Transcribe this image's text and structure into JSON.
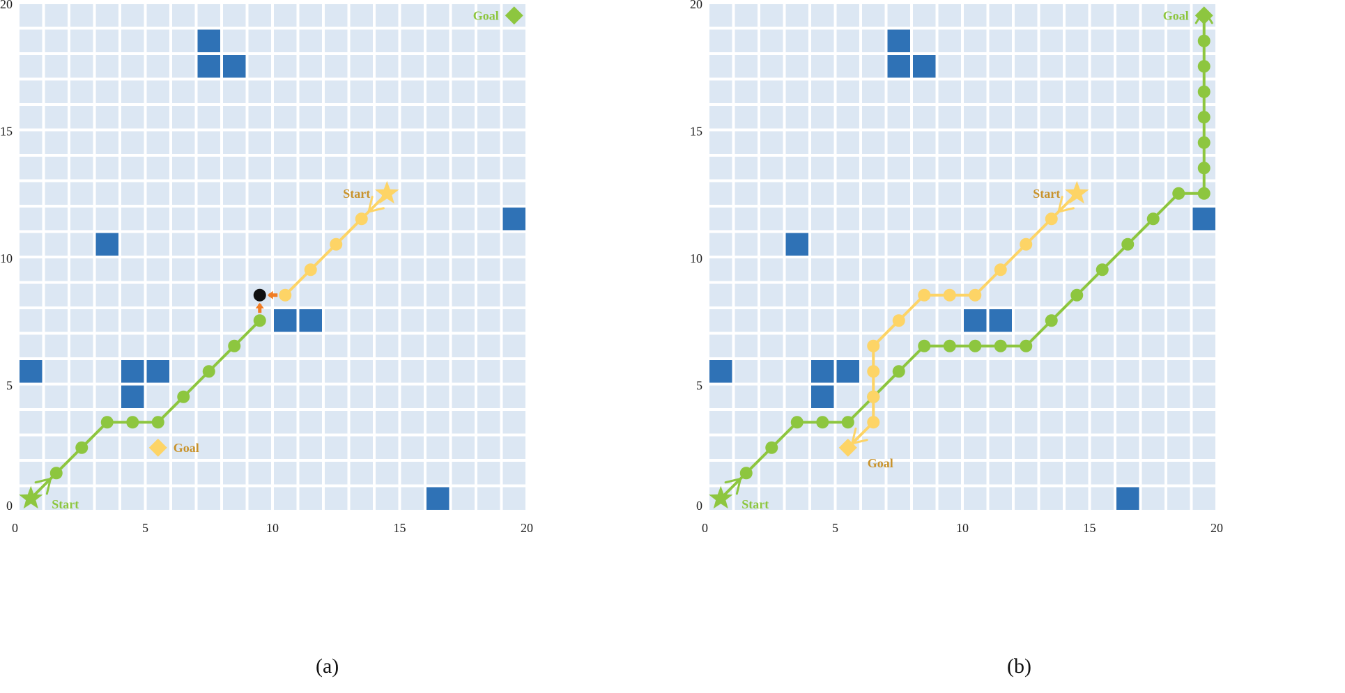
{
  "colors": {
    "cell": "#dce7f3",
    "obstacle": "#2f72b6",
    "green_agent": "#8dc63f",
    "yellow_agent": "#fdd466",
    "yellow_text": "#c8922a",
    "collision_arrow": "#f07c24",
    "collision_dot": "#111111",
    "axis_text": "#222222"
  },
  "panels": [
    {
      "id": "a",
      "caption": "(a)",
      "labels": {
        "green_start": "Start",
        "green_goal": "Goal",
        "yellow_start": "Start",
        "yellow_goal": "Goal"
      },
      "green_goal_cell": [
        19.5,
        19.5
      ],
      "yellow_goal_cell": [
        5.5,
        2.5
      ],
      "green_path": [
        [
          0.5,
          0.5
        ],
        [
          1.5,
          1.5
        ],
        [
          2.5,
          2.5
        ],
        [
          3.5,
          3.5
        ],
        [
          4.5,
          3.5
        ],
        [
          5.5,
          3.5
        ],
        [
          6.5,
          4.5
        ],
        [
          7.5,
          5.5
        ],
        [
          8.5,
          6.5
        ],
        [
          9.5,
          7.5
        ]
      ],
      "yellow_path": [
        [
          14.5,
          12.5
        ],
        [
          13.5,
          11.5
        ],
        [
          12.5,
          10.5
        ],
        [
          11.5,
          9.5
        ],
        [
          10.5,
          8.5
        ]
      ],
      "collision_point": [
        9.5,
        8.5
      ]
    },
    {
      "id": "b",
      "caption": "(b)",
      "labels": {
        "green_start": "Start",
        "green_goal": "Goal",
        "yellow_start": "Start",
        "yellow_goal": "Goal"
      },
      "green_goal_cell": [
        19.5,
        19.5
      ],
      "yellow_goal_cell": [
        5.5,
        2.5
      ],
      "green_path": [
        [
          0.5,
          0.5
        ],
        [
          1.5,
          1.5
        ],
        [
          2.5,
          2.5
        ],
        [
          3.5,
          3.5
        ],
        [
          4.5,
          3.5
        ],
        [
          5.5,
          3.5
        ],
        [
          6.5,
          4.5
        ],
        [
          7.5,
          5.5
        ],
        [
          8.5,
          6.5
        ],
        [
          9.5,
          6.5
        ],
        [
          10.5,
          6.5
        ],
        [
          11.5,
          6.5
        ],
        [
          12.5,
          6.5
        ],
        [
          13.5,
          7.5
        ],
        [
          14.5,
          8.5
        ],
        [
          15.5,
          9.5
        ],
        [
          16.5,
          10.5
        ],
        [
          17.5,
          11.5
        ],
        [
          18.5,
          12.5
        ],
        [
          19.5,
          12.5
        ],
        [
          19.5,
          13.5
        ],
        [
          19.5,
          14.5
        ],
        [
          19.5,
          15.5
        ],
        [
          19.5,
          16.5
        ],
        [
          19.5,
          17.5
        ],
        [
          19.5,
          18.5
        ],
        [
          19.5,
          19.5
        ]
      ],
      "yellow_path": [
        [
          14.5,
          12.5
        ],
        [
          13.5,
          11.5
        ],
        [
          12.5,
          10.5
        ],
        [
          11.5,
          9.5
        ],
        [
          10.5,
          8.5
        ],
        [
          9.5,
          8.5
        ],
        [
          8.5,
          8.5
        ],
        [
          7.5,
          7.5
        ],
        [
          6.5,
          6.5
        ],
        [
          6.5,
          5.5
        ],
        [
          6.5,
          4.5
        ],
        [
          6.5,
          3.5
        ],
        [
          5.5,
          2.5
        ]
      ]
    }
  ],
  "grid": {
    "size": 20,
    "axis_ticks": [
      "0",
      "5",
      "10",
      "15",
      "20"
    ],
    "obstacles": [
      [
        7,
        18
      ],
      [
        7,
        17
      ],
      [
        8,
        17
      ],
      [
        3,
        10
      ],
      [
        19,
        11
      ],
      [
        10,
        7
      ],
      [
        11,
        7
      ],
      [
        0,
        5
      ],
      [
        4,
        5
      ],
      [
        5,
        5
      ],
      [
        4,
        4
      ],
      [
        16,
        0
      ]
    ]
  }
}
